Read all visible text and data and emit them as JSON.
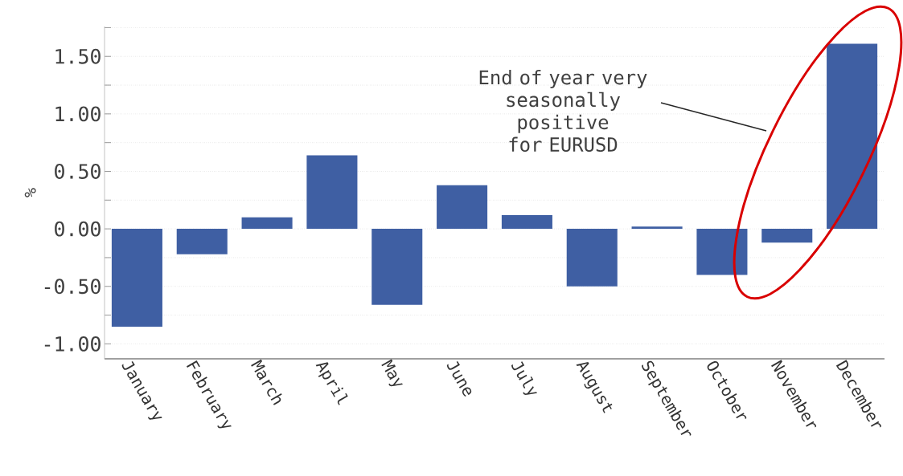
{
  "chart_data": {
    "type": "bar",
    "ylabel": "%",
    "categories": [
      "January",
      "February",
      "March",
      "April",
      "May",
      "June",
      "July",
      "August",
      "September",
      "October",
      "November",
      "December"
    ],
    "values": [
      -0.85,
      -0.22,
      0.1,
      0.64,
      -0.66,
      0.38,
      0.12,
      -0.5,
      0.02,
      -0.4,
      -0.12,
      1.61
    ],
    "color": "#3f5fa3",
    "ylim": [
      -1.13,
      1.76
    ],
    "yticks": [
      {
        "value": -1.0,
        "label": "-1.00"
      },
      {
        "value": -0.75,
        "label": null
      },
      {
        "value": -0.5,
        "label": "-0.50"
      },
      {
        "value": -0.25,
        "label": null
      },
      {
        "value": 0,
        "label": "0.00"
      },
      {
        "value": 0.25,
        "label": null
      },
      {
        "value": 0.5,
        "label": "0.50"
      },
      {
        "value": 0.75,
        "label": null
      },
      {
        "value": 1.0,
        "label": "1.00"
      },
      {
        "value": 1.25,
        "label": null
      },
      {
        "value": 1.5,
        "label": "1.50"
      },
      {
        "value": 1.75,
        "label": null
      }
    ],
    "grid": "y",
    "annotations": [
      "End of year very seasonally positive for EURUSD"
    ]
  }
}
